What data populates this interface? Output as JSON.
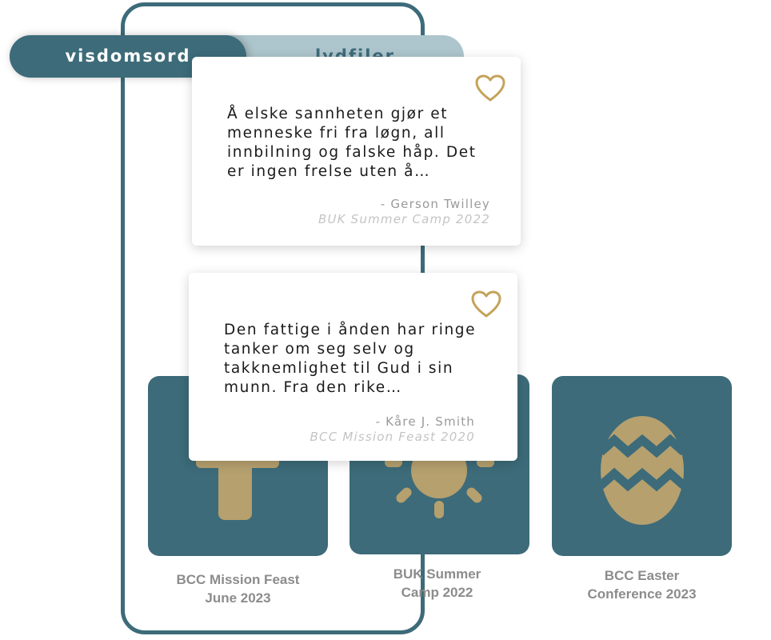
{
  "tabs": {
    "active_label": "visdomsord",
    "inactive_label": "lydfiler"
  },
  "quotes": [
    {
      "text": "Å elske sannheten gjør et menneske fri fra løgn, all innbilning og falske håp. Det er ingen frelse uten å…",
      "author": "- Gerson Twilley",
      "source": "BUK Summer Camp 2022",
      "heart_icon": "heart-outline-icon"
    },
    {
      "text": "Den fattige i ånden har ringe tanker om seg selv og takknemlighet til Gud i sin munn. Fra den rike…",
      "author": "- Kåre J. Smith",
      "source": "BCC Mission Feast 2020",
      "heart_icon": "heart-outline-icon"
    }
  ],
  "events": [
    {
      "label": "BCC Mission Feast\nJune 2023",
      "icon": "cross-icon"
    },
    {
      "label": "BUK Summer\nCamp 2022",
      "icon": "sun-icon"
    },
    {
      "label": "BCC Easter\nConference 2023",
      "icon": "easter-egg-icon"
    }
  ],
  "colors": {
    "primary_teal": "#3d6b79",
    "tab_inactive_bg": "#adc5cc",
    "accent_gold": "#b5a06e",
    "heart_gold": "#c4a35a",
    "label_gray": "#8c8c8c"
  }
}
